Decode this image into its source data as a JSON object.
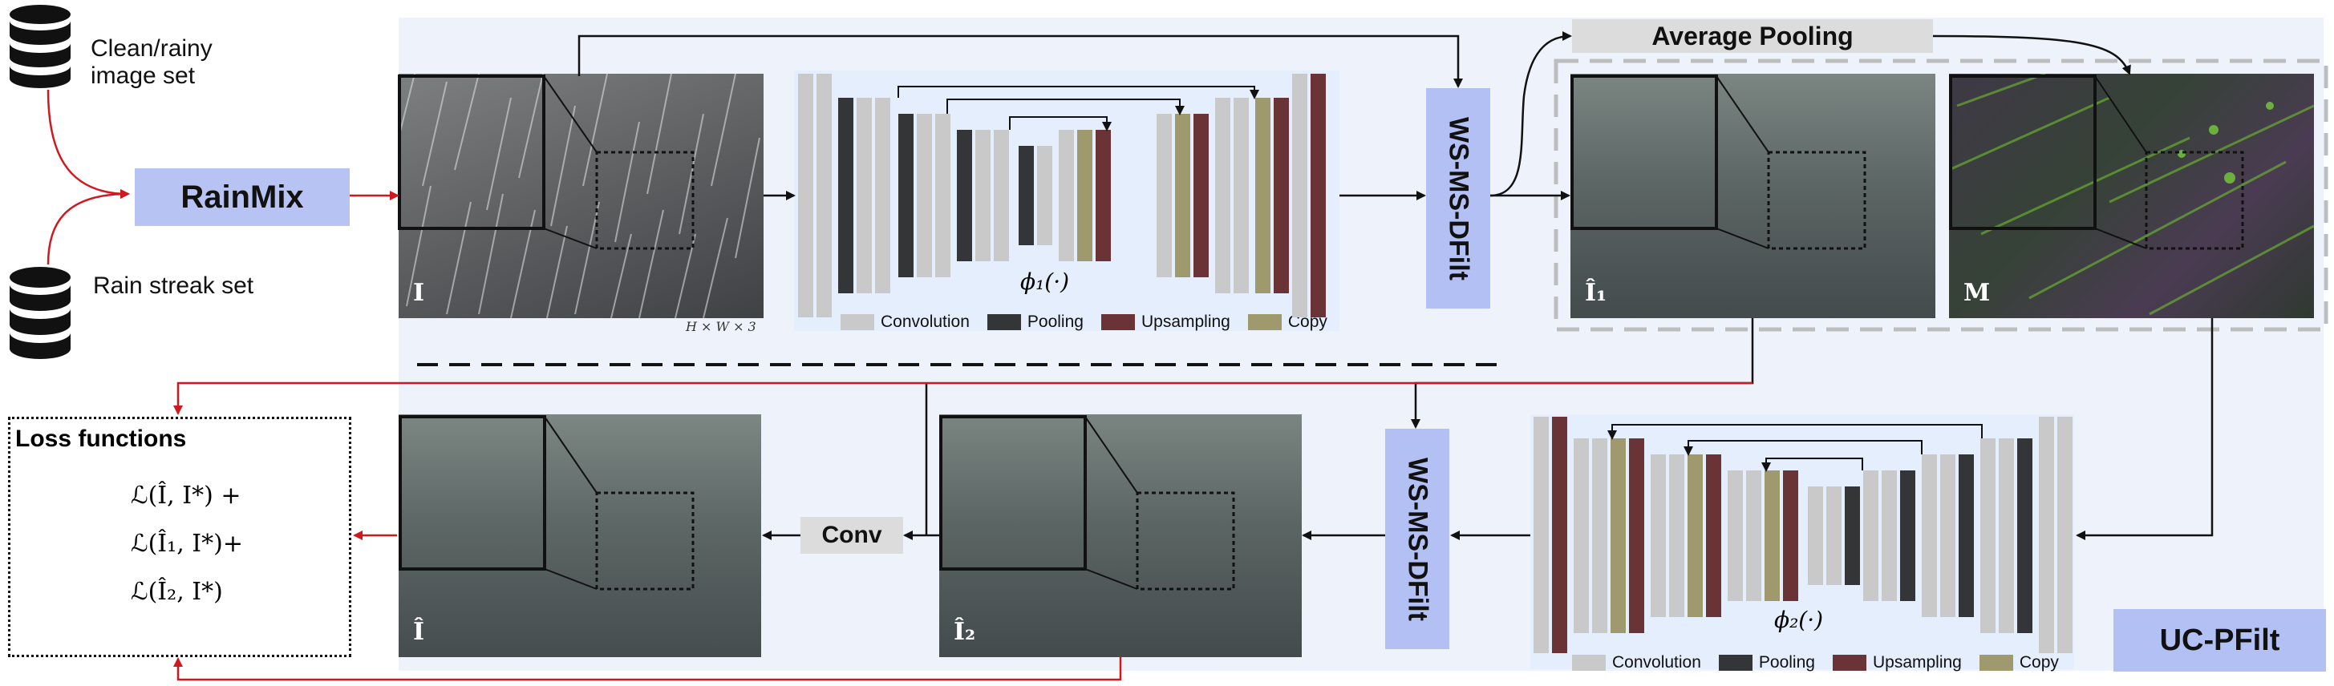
{
  "inputs": {
    "clean_rainy": "Clean/rainy\nimage set",
    "rain_streak": "Rain streak set"
  },
  "rainmix": "RainMix",
  "wsms_top": "WS-MS-DFilt",
  "wsms_bottom": "WS-MS-DFilt",
  "average_pooling": "Average Pooling",
  "conv": "Conv",
  "uc_pfilt": "UC-PFilt",
  "image_marks": {
    "input": "I",
    "i1": "Î₁",
    "mask": "M",
    "i2": "Î₂",
    "final": "Î"
  },
  "dim_label": "H × W × 3",
  "net1": {
    "phi": "ϕ₁(·)"
  },
  "net2": {
    "phi": "ϕ₂(·)"
  },
  "legend": {
    "convolution": "Convolution",
    "pooling": "Pooling",
    "upsampling": "Upsampling",
    "copy": "Copy"
  },
  "loss": {
    "title": "Loss functions",
    "line1": "ℒ(Î, I*) +",
    "line2": "ℒ(Î₁, I*)+",
    "line3": "ℒ(Î₂, I*)"
  },
  "colors": {
    "convolution": "#c9c9c9",
    "pooling": "#333537",
    "upsampling": "#6a3336",
    "copy": "#9e9a6d",
    "accent_box": "#b3c0f4",
    "red_arrow": "#d0191f"
  }
}
